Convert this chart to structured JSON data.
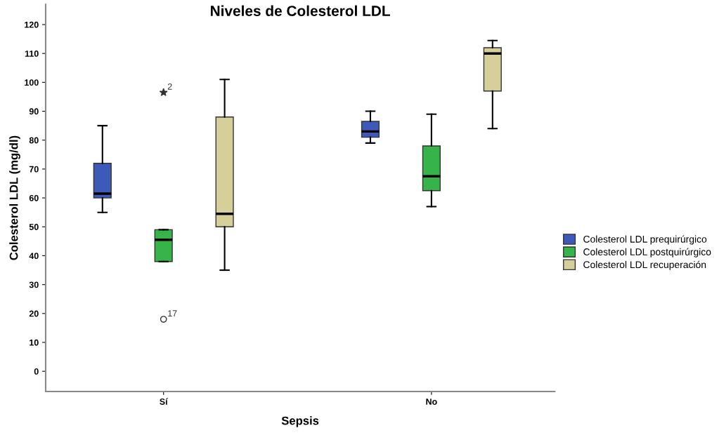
{
  "chart_data": {
    "type": "box",
    "title": "Niveles de Colesterol LDL",
    "xlabel": "Sepsis",
    "ylabel": "Colesterol LDL (mg/dl)",
    "categories": [
      "Sí",
      "No"
    ],
    "series": [
      {
        "name": "Colesterol LDL prequirúrgico",
        "color": "#3e5ab8",
        "boxes": [
          {
            "low": 55,
            "q1": 60,
            "median": 61.5,
            "q3": 72,
            "high": 85
          },
          {
            "low": 79,
            "q1": 81,
            "median": 83,
            "q3": 86.5,
            "high": 90
          }
        ]
      },
      {
        "name": "Colesterol LDL postquirúrgico",
        "color": "#36b44a",
        "boxes": [
          {
            "low": 38,
            "q1": 38,
            "median": 45.5,
            "q3": 49,
            "high": 49,
            "outliers": [
              96.5,
              18
            ]
          },
          {
            "low": 57,
            "q1": 62.5,
            "median": 67.5,
            "q3": 78,
            "high": 89
          }
        ]
      },
      {
        "name": "Colesterol LDL recuperación",
        "color": "#d6cf9a",
        "boxes": [
          {
            "low": 35,
            "q1": 50,
            "median": 54.5,
            "q3": 88,
            "high": 101
          },
          {
            "low": 84,
            "q1": 97,
            "median": 110,
            "q3": 112,
            "high": 114.5
          }
        ]
      }
    ],
    "annotations": [
      "2",
      "17"
    ],
    "ylim": [
      -7,
      127
    ],
    "yticks": [
      0,
      10,
      20,
      30,
      40,
      50,
      60,
      70,
      80,
      90,
      100,
      110,
      120
    ],
    "grid": false,
    "legend": "right"
  }
}
